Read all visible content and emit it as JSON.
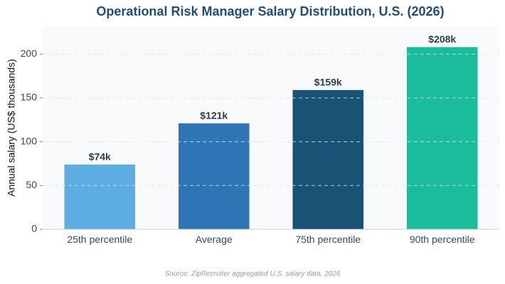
{
  "chart_data": {
    "type": "bar",
    "title": "Operational Risk Manager Salary Distribution, U.S. (2026)",
    "ylabel": "Annual salary (US$ thousands)",
    "categories": [
      "25th percentile",
      "Average",
      "75th percentile",
      "90th percentile"
    ],
    "values": [
      74,
      121,
      159,
      208
    ],
    "value_labels": [
      "$74k",
      "$121k",
      "$159k",
      "$208k"
    ],
    "colors": [
      "#5dade2",
      "#2e75b6",
      "#1a5276",
      "#1abc9c"
    ],
    "ylim": [
      0,
      231
    ],
    "yticks": [
      0,
      50,
      100,
      150,
      200
    ],
    "grid": true,
    "source": "Source: ZipRecruiter aggregated U.S. salary data, 2026"
  }
}
